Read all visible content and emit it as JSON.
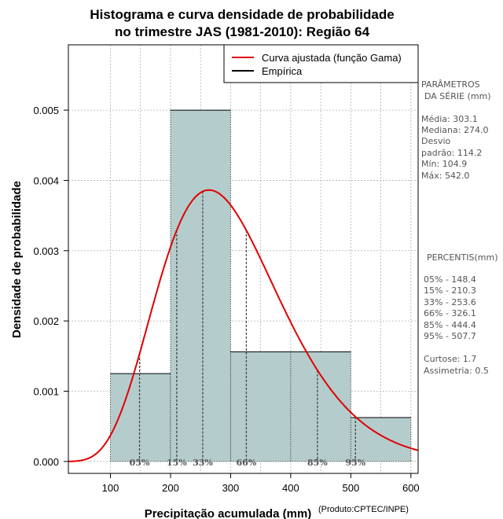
{
  "chart_data": {
    "type": "histogram",
    "title_line1": "Histograma e curva densidade de probabilidade",
    "title_line2": "no trimestre JAS (1981-2010): Região 64",
    "xlabel": "Precipitação acumulada (mm)",
    "ylabel": "Densidade de probabilidade",
    "credit": "(Produto:CPTEC/INPE)",
    "xlim": [
      30,
      612
    ],
    "ylim": [
      -0.00017,
      0.00593
    ],
    "x_ticks": [
      100,
      200,
      300,
      400,
      500,
      600
    ],
    "y_ticks": [
      0.0,
      0.001,
      0.002,
      0.003,
      0.004,
      0.005
    ],
    "y_tick_labels": [
      "0.000",
      "0.001",
      "0.002",
      "0.003",
      "0.004",
      "0.005"
    ],
    "grid": true,
    "bins": [
      {
        "start": 100,
        "end": 200,
        "density": 0.00125
      },
      {
        "start": 200,
        "end": 300,
        "density": 0.005
      },
      {
        "start": 300,
        "end": 400,
        "density": 0.00156
      },
      {
        "start": 400,
        "end": 500,
        "density": 0.00156
      },
      {
        "start": 500,
        "end": 600,
        "density": 0.000625
      }
    ],
    "bar_color": "#b4cccc",
    "gamma_fit": {
      "shape": 7.7,
      "scale": 39.4,
      "color": "#e00000"
    },
    "legend": {
      "position": "top-right",
      "entries": [
        {
          "label": "Curva ajustada (função Gama)",
          "color": "#e00000"
        },
        {
          "label": "Empírica",
          "color": "#000000"
        }
      ]
    },
    "percentiles": [
      {
        "label": "05%",
        "value": 148.4
      },
      {
        "label": "15%",
        "value": 210.3
      },
      {
        "label": "33%",
        "value": 253.6
      },
      {
        "label": "66%",
        "value": 326.1
      },
      {
        "label": "85%",
        "value": 444.4
      },
      {
        "label": "95%",
        "value": 507.7
      }
    ]
  },
  "side_panel": {
    "params_title_1": "PARÂMETROS",
    "params_title_2": "DA SÉRIE (mm)",
    "media": "Média:  303.1",
    "mediana": "Mediana:  274.0",
    "desvio": "Desvio",
    "padrao": "padrão:  114.2",
    "min": "Mín:  104.9",
    "max": "Máx:  542.0",
    "percentis_title": "PERCENTIS(mm)",
    "p05": "05% -   148.4",
    "p15": "15% -   210.3",
    "p33": "33% -   253.6",
    "p66": "66% -   326.1",
    "p85": "85% -   444.4",
    "p95": "95% -   507.7",
    "curtose": "Curtose:   1.7",
    "assimetria": "Assimetria:  0.5"
  }
}
